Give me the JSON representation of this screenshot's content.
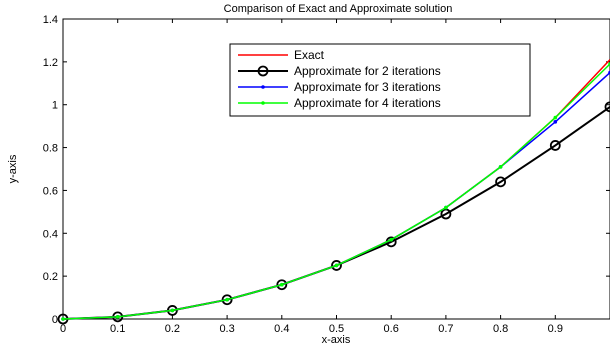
{
  "chart_data": {
    "type": "line",
    "title": "Comparison of Exact and Approximate solution",
    "xlabel": "x-axis",
    "ylabel": "y-axis",
    "xlim": [
      0,
      1
    ],
    "ylim": [
      0,
      1.4
    ],
    "xticks": [
      "0",
      "0.1",
      "0.2",
      "0.3",
      "0.4",
      "0.5",
      "0.6",
      "0.7",
      "0.8",
      "0.9"
    ],
    "yticks": [
      "0",
      "0.2",
      "0.4",
      "0.6",
      "0.8",
      "1",
      "1.2",
      "1.4"
    ],
    "legend_position": "top-right",
    "grid": false,
    "series": [
      {
        "name": "Exact",
        "color": "#ff0000",
        "marker": "none",
        "x": [
          0,
          0.1,
          0.2,
          0.3,
          0.4,
          0.5,
          0.6,
          0.7,
          0.8,
          0.9,
          1.0
        ],
        "y": [
          0,
          0.01,
          0.04,
          0.09,
          0.16,
          0.25,
          0.37,
          0.52,
          0.71,
          0.94,
          1.21
        ]
      },
      {
        "name": "Approximate for 2 iterations",
        "color": "#000000",
        "marker": "circle",
        "x": [
          0,
          0.1,
          0.2,
          0.3,
          0.4,
          0.5,
          0.6,
          0.7,
          0.8,
          0.9,
          1.0
        ],
        "y": [
          0,
          0.01,
          0.04,
          0.09,
          0.16,
          0.25,
          0.36,
          0.49,
          0.64,
          0.81,
          0.99
        ]
      },
      {
        "name": "Approximate for 3 iterations",
        "color": "#0000ff",
        "marker": "dot",
        "x": [
          0,
          0.1,
          0.2,
          0.3,
          0.4,
          0.5,
          0.6,
          0.7,
          0.8,
          0.9,
          1.0
        ],
        "y": [
          0,
          0.01,
          0.04,
          0.09,
          0.16,
          0.25,
          0.37,
          0.52,
          0.71,
          0.92,
          1.15
        ]
      },
      {
        "name": "Approximate for 4 iterations",
        "color": "#00ff00",
        "marker": "dot",
        "x": [
          0,
          0.1,
          0.2,
          0.3,
          0.4,
          0.5,
          0.6,
          0.7,
          0.8,
          0.9,
          1.0
        ],
        "y": [
          0,
          0.01,
          0.04,
          0.09,
          0.16,
          0.25,
          0.37,
          0.52,
          0.71,
          0.94,
          1.19
        ]
      }
    ]
  }
}
